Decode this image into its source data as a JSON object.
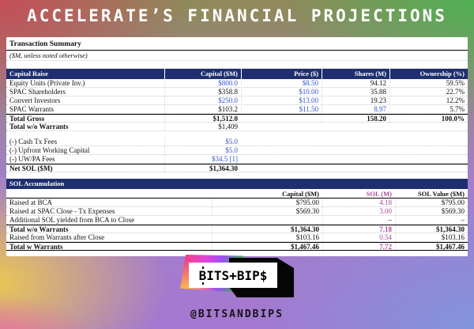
{
  "header": {
    "title": "ACCELERATE’S FINANCIAL PROJECTIONS"
  },
  "sheet": {
    "summary": {
      "title": "Transaction Summary",
      "note": "($M, unless noted otherwise)"
    },
    "capital_raise": {
      "label": "Capital Raise",
      "columns": [
        "Capital ($M)",
        "Price ($)",
        "Shares (M)",
        "Ownership (%)"
      ],
      "rows": [
        {
          "label": "Equity Units (Private Inv.)",
          "capital": "$800.0",
          "price": "$8.50",
          "shares": "94.12",
          "ownership": "59.5%"
        },
        {
          "label": "SPAC Shareholders",
          "capital": "$358.8",
          "price": "$10.00",
          "shares": "35.88",
          "ownership": "22.7%"
        },
        {
          "label": "Convert Investors",
          "capital": "$250.0",
          "price": "$13.00",
          "shares": "19.23",
          "ownership": "12.2%"
        },
        {
          "label": "SPAC Warrants",
          "capital": "$103.2",
          "price": "$11.50",
          "shares": "8.97",
          "ownership": "5.7%"
        },
        {
          "label": "Total Gross",
          "capital": "$1,512.0",
          "price": "",
          "shares": "158.20",
          "ownership": "100.0%"
        },
        {
          "label": "Total w/o Warrants",
          "capital": "$1,409",
          "price": "",
          "shares": "",
          "ownership": ""
        }
      ]
    },
    "fees": {
      "rows": [
        {
          "label": "(-) Cash Tx Fees",
          "value": "$5.0"
        },
        {
          "label": "(-) Upfront Working Capital",
          "value": "$5.0"
        },
        {
          "label": "(-) UW/PA Fees",
          "value": "$34.5 [1]"
        },
        {
          "label": "Net SOL ($M)",
          "value": "$1,364.30"
        }
      ]
    },
    "sol_accumulation": {
      "label": "SOL Accumulation",
      "columns": [
        "Capital ($M)",
        "SOL (M)",
        "SOL Value ($M)"
      ],
      "rows": [
        {
          "label": "Raised at BCA",
          "capital": "$795.00",
          "sol": "4.18",
          "value": "$795.00"
        },
        {
          "label": "Raised at SPAC Close - Tx Expenses",
          "capital": "$569.30",
          "sol": "3.00",
          "value": "$569.30"
        },
        {
          "label": "Additional SOL yielded from BCA to Close",
          "capital": "",
          "sol": "–",
          "value": "–"
        },
        {
          "label": "Total w/o Warrants",
          "capital": "$1,364.30",
          "sol": "7.18",
          "value": "$1,364.30"
        },
        {
          "label": "Raised from Warrants after Close",
          "capital": "$103.16",
          "sol": "0.54",
          "value": "$103.16"
        },
        {
          "label": "Total w Warrants",
          "capital": "$1,467.46",
          "sol": "7.72",
          "value": "$1,467.46"
        }
      ]
    }
  },
  "footer": {
    "logo_b": "B",
    "logo_rest": "ITS+BIP$",
    "handle": "@BITSANDBIPS"
  },
  "colors": {
    "navy_header": "#1f2e6e",
    "input_blue": "#3355cc",
    "sol_purple": "#a8489c",
    "gray_cell": "#d9d9d9"
  }
}
